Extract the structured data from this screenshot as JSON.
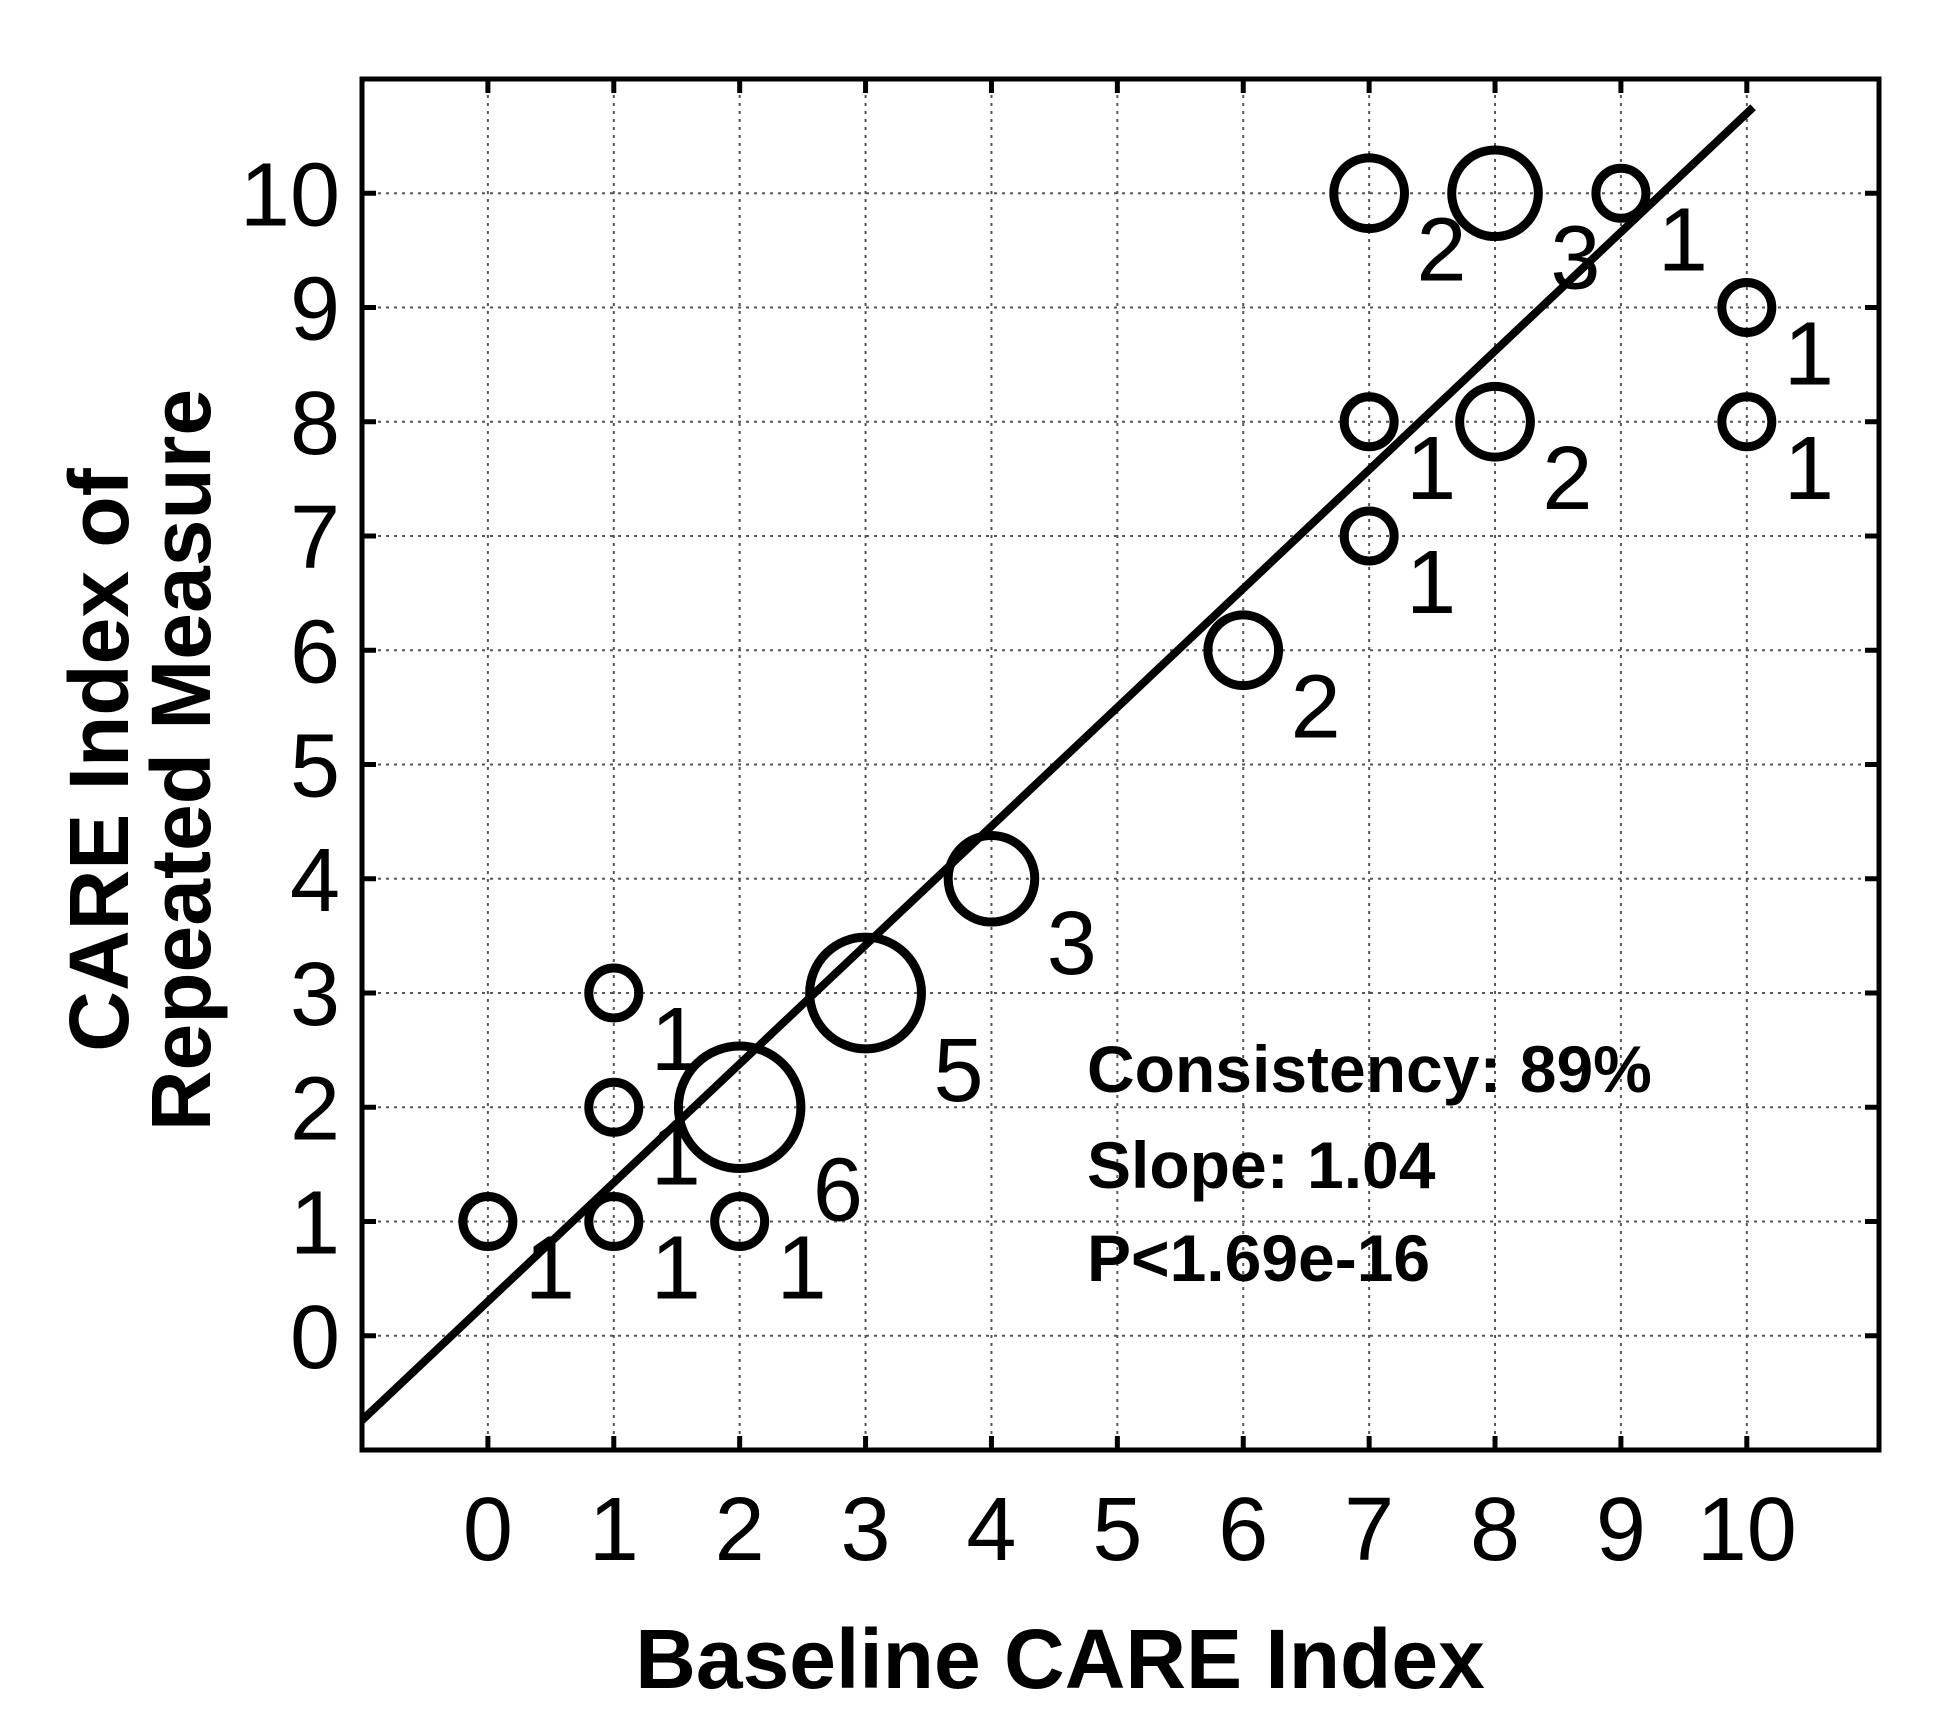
{
  "chart_data": {
    "type": "scatter",
    "title": "",
    "xlabel": "Baseline CARE Index",
    "ylabel_lines": [
      "CARE Index of",
      "Repeated Measure"
    ],
    "xlim": [
      -1,
      11.05
    ],
    "ylim": [
      -1,
      11
    ],
    "x_ticks": [
      "0",
      "1",
      "2",
      "3",
      "4",
      "5",
      "6",
      "7",
      "8",
      "9",
      "10"
    ],
    "y_ticks": [
      "0",
      "1",
      "2",
      "3",
      "4",
      "5",
      "6",
      "7",
      "8",
      "9",
      "10"
    ],
    "grid": true,
    "points": [
      {
        "x": 0,
        "y": 1,
        "count": "1"
      },
      {
        "x": 1,
        "y": 1,
        "count": "1"
      },
      {
        "x": 2,
        "y": 1,
        "count": "1"
      },
      {
        "x": 1,
        "y": 2,
        "count": "1"
      },
      {
        "x": 1,
        "y": 3,
        "count": "1"
      },
      {
        "x": 2,
        "y": 2,
        "count": "6"
      },
      {
        "x": 3,
        "y": 3,
        "count": "5"
      },
      {
        "x": 4,
        "y": 4,
        "count": "3"
      },
      {
        "x": 6,
        "y": 6,
        "count": "2"
      },
      {
        "x": 7,
        "y": 7,
        "count": "1"
      },
      {
        "x": 7,
        "y": 8,
        "count": "1"
      },
      {
        "x": 8,
        "y": 8,
        "count": "2"
      },
      {
        "x": 7,
        "y": 10,
        "count": "2"
      },
      {
        "x": 8,
        "y": 10,
        "count": "3"
      },
      {
        "x": 9,
        "y": 10,
        "count": "1"
      },
      {
        "x": 10,
        "y": 9,
        "count": "1"
      },
      {
        "x": 10,
        "y": 8,
        "count": "1"
      }
    ],
    "fit_line": {
      "slope": 1.04,
      "intercept": 0.3,
      "x_range": [
        -1,
        10.05
      ]
    },
    "annotations": [
      "Consistency: 89%",
      "Slope: 1.04",
      "P<1.69e-16"
    ]
  },
  "colors": {
    "ink": "#000000",
    "grid": "#555555",
    "background": "#ffffff"
  }
}
